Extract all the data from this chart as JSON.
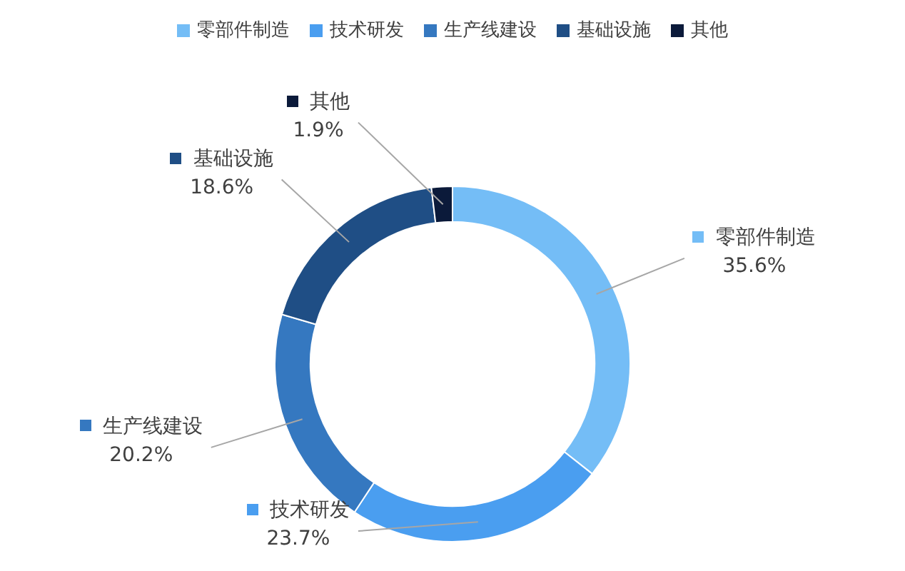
{
  "chart_data": {
    "type": "donut",
    "categories": [
      "零部件制造",
      "技术研发",
      "生产线建设",
      "基础设施",
      "其他"
    ],
    "values": [
      35.6,
      23.7,
      20.2,
      18.6,
      1.9
    ],
    "colors": [
      "#74bdf6",
      "#4a9ef0",
      "#3578c0",
      "#1f4e85",
      "#0b1a3a"
    ],
    "value_labels": [
      "35.6%",
      "23.7%",
      "20.2%",
      "18.6%",
      "1.9%"
    ],
    "legend": "top"
  }
}
